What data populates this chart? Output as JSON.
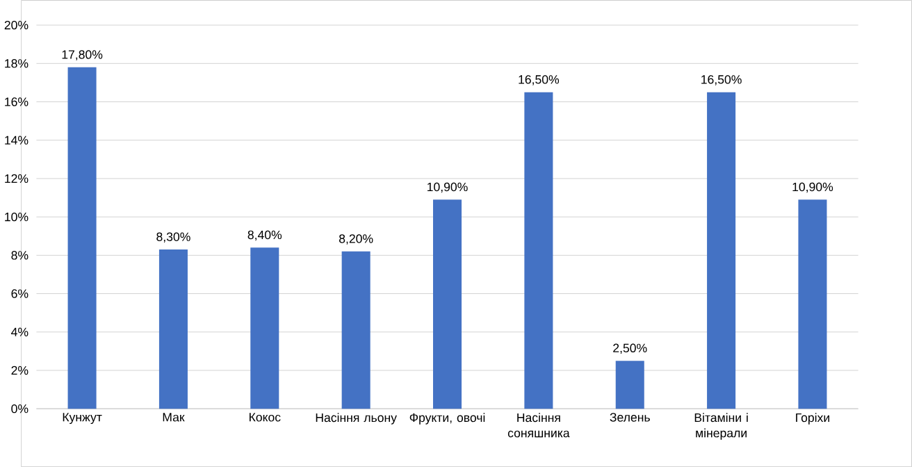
{
  "chart_data": {
    "type": "bar",
    "categories": [
      "Кунжут",
      "Мак",
      "Кокос",
      "Насіння льону",
      "Фрукти, овочі",
      "Насіння соняшника",
      "Зелень",
      "Вітаміни і мінерали",
      "Горіхи"
    ],
    "values": [
      17.8,
      8.3,
      8.4,
      8.2,
      10.9,
      16.5,
      2.5,
      16.5,
      10.9
    ],
    "value_labels": [
      "17,80%",
      "8,30%",
      "8,40%",
      "8,20%",
      "10,90%",
      "16,50%",
      "2,50%",
      "16,50%",
      "10,90%"
    ],
    "color": "#4472c4",
    "ylim": [
      0,
      20
    ],
    "yticks": [
      {
        "value": 0,
        "label": "0%"
      },
      {
        "value": 2,
        "label": "2%"
      },
      {
        "value": 4,
        "label": "4%"
      },
      {
        "value": 6,
        "label": "6%"
      },
      {
        "value": 8,
        "label": "8%"
      },
      {
        "value": 10,
        "label": "10%"
      },
      {
        "value": 12,
        "label": "12%"
      },
      {
        "value": 14,
        "label": "14%"
      },
      {
        "value": 16,
        "label": "16%"
      },
      {
        "value": 18,
        "label": "18%"
      },
      {
        "value": 20,
        "label": "20%"
      }
    ],
    "grid": "y",
    "legend": false
  }
}
